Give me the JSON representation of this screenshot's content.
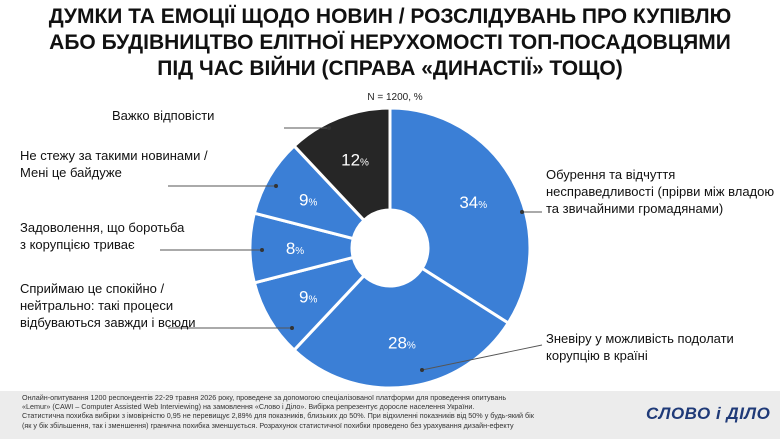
{
  "title_lines": [
    "ДУМКИ ТА ЕМОЦІЇ ЩОДО НОВИН / РОЗСЛІДУВАНЬ ПРО КУПІВЛЮ",
    "АБО БУДІВНИЦТВО ЕЛІТНОЇ НЕРУХОМОСТІ ТОП-ПОСАДОВЦЯМИ",
    "ПІД ЧАС ВІЙНИ (СПРАВА «ДИНАСТІЇ» ТОЩО)"
  ],
  "note": "N = 1200, %",
  "chart_data": {
    "type": "pie",
    "donut": true,
    "unit": "%",
    "sample_size": 1200,
    "slices": [
      {
        "label_lines": [
          "Обурення та відчуття",
          "несправедливості (прірви між владою",
          "та звичайними громадянами)"
        ],
        "value": 34,
        "color": "#3b7fd6"
      },
      {
        "label_lines": [
          "Зневіру у можливість подолати",
          "корупцію в країні"
        ],
        "value": 28,
        "color": "#3b7fd6"
      },
      {
        "label_lines": [
          "Сприймаю це спокійно /",
          "нейтрально: такі процеси",
          "відбуваються завжди і всюди"
        ],
        "value": 9,
        "color": "#3b7fd6"
      },
      {
        "label_lines": [
          "Задоволення, що боротьба",
          "з корупцією триває"
        ],
        "value": 8,
        "color": "#3b7fd6"
      },
      {
        "label_lines": [
          "Не стежу за такими новинами /",
          "Мені це байдуже"
        ],
        "value": 9,
        "color": "#3b7fd6"
      },
      {
        "label_lines": [
          "Важко відповісти"
        ],
        "value": 12,
        "color": "#262626"
      }
    ]
  },
  "footer_lines": [
    "Онлайн-опитування 1200 респондентів 22-29 травня 2026 року, проведене за допомогою спеціалізованої платформи для проведення опитувань",
    "«Lemur» (CAWI – Computer Assisted Web Interviewing) на замовлення «Слово і Діло». Вибірка репрезентує доросле населення України.",
    "Статистична похибка вибірки з імовірністю 0,95 не перевищує 2,89% для показників, близьких до 50%. При відхиленні показників від 50% у будь-який бік",
    "(як у бік збільшення, так і зменшення) гранична похибка зменшується. Розрахунок статистичної похибки проведено без урахування дизайн-ефекту"
  ],
  "logo": "СЛОВО і ДІЛО"
}
